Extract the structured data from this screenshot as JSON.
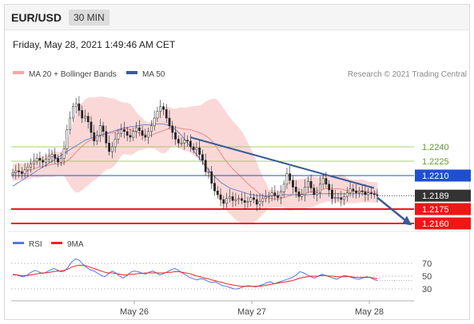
{
  "header": {
    "symbol": "EUR/USD",
    "timeframe": "30 MIN"
  },
  "timestamp": "Friday, May 28, 2021 1:49:46 AM CET",
  "legend": {
    "bands_label": "MA 20 + Bollinger Bands",
    "ma50_label": "MA 50",
    "credit": "Research © 2021 Trading Central"
  },
  "rsi_legend": {
    "rsi_label": "RSI",
    "ma_label": "9MA"
  },
  "colors": {
    "bands": "#f7a8a8",
    "ma20": "#e88080",
    "ma50": "#6f86c9",
    "trend": "#3a5a98",
    "resistance": "#8dbf4a",
    "pivot": "#1f4fd1",
    "support": "#ef1616",
    "candle": "#222222",
    "current": "#333333",
    "rsi": "#5577dd",
    "rsi_ma": "#ee2222"
  },
  "chart_data": [
    {
      "type": "candlestick",
      "title": "",
      "x_labels": [
        "May 26",
        "May 27",
        "May 28"
      ],
      "ylim": [
        1.2155,
        1.2305
      ],
      "series": [
        {
          "name": "MA 20 + Bollinger Bands"
        },
        {
          "name": "MA 50"
        }
      ],
      "close": [
        1.2213,
        1.2215,
        1.2214,
        1.2212,
        1.2216,
        1.2219,
        1.2222,
        1.2225,
        1.2228,
        1.2226,
        1.2224,
        1.2227,
        1.223,
        1.2232,
        1.2228,
        1.2224,
        1.2228,
        1.2238,
        1.2258,
        1.227,
        1.2282,
        1.2285,
        1.2278,
        1.227,
        1.2272,
        1.2266,
        1.2255,
        1.2246,
        1.2252,
        1.2262,
        1.2256,
        1.2244,
        1.2235,
        1.224,
        1.2248,
        1.2254,
        1.2258,
        1.2256,
        1.2252,
        1.225,
        1.2256,
        1.226,
        1.2257,
        1.2252,
        1.225,
        1.2256,
        1.2262,
        1.227,
        1.2277,
        1.2282,
        1.2279,
        1.227,
        1.2262,
        1.2255,
        1.2248,
        1.2244,
        1.2244,
        1.2247,
        1.2246,
        1.224,
        1.2237,
        1.2239,
        1.2232,
        1.2226,
        1.2214,
        1.2214,
        1.2202,
        1.2194,
        1.219,
        1.2185,
        1.2181,
        1.2186,
        1.2188,
        1.2184,
        1.2185,
        1.2186,
        1.2184,
        1.2182,
        1.2183,
        1.2187,
        1.2185,
        1.218,
        1.2183,
        1.2186,
        1.2188,
        1.2189,
        1.2192,
        1.2189,
        1.2187,
        1.2193,
        1.2201,
        1.2212,
        1.2205,
        1.2198,
        1.2193,
        1.2188,
        1.219,
        1.2198,
        1.2204,
        1.2197,
        1.219,
        1.2192,
        1.2201,
        1.2207,
        1.2201,
        1.2195,
        1.2186,
        1.2187,
        1.2187,
        1.2185,
        1.2188,
        1.2192,
        1.2196,
        1.2194,
        1.2192,
        1.2194,
        1.2193,
        1.219,
        1.2192,
        1.2191,
        1.219,
        1.2189
      ],
      "ma50": [
        1.2199,
        1.2201,
        1.2203,
        1.2205,
        1.2207,
        1.2209,
        1.2211,
        1.2213,
        1.2215,
        1.2217,
        1.2219,
        1.2221,
        1.2223,
        1.2225,
        1.2227,
        1.2229,
        1.2231,
        1.2233,
        1.2235,
        1.2237,
        1.2239,
        1.2241,
        1.2243,
        1.2245,
        1.2247,
        1.2248,
        1.2249,
        1.225,
        1.2251,
        1.2252,
        1.2253,
        1.2254,
        1.2255,
        1.2256,
        1.2257,
        1.2258,
        1.2259,
        1.226,
        1.226,
        1.2261,
        1.2261,
        1.2262,
        1.2262,
        1.2263,
        1.2263,
        1.2263,
        1.2263,
        1.2264,
        1.2264,
        1.2264,
        1.2264,
        1.2263,
        1.2262,
        1.226,
        1.2258,
        1.2255,
        1.2252,
        1.2248,
        1.2244,
        1.224,
        1.2236,
        1.2232,
        1.2228,
        1.2224,
        1.222,
        1.2216,
        1.2212,
        1.2209,
        1.2206,
        1.2203,
        1.2201,
        1.2199,
        1.2197,
        1.2196,
        1.2195,
        1.2194,
        1.2193,
        1.2192,
        1.2191,
        1.219,
        1.219,
        1.2189,
        1.2189,
        1.2189,
        1.2189,
        1.2189,
        1.2189,
        1.2189,
        1.2189,
        1.219,
        1.219,
        1.219,
        1.219,
        1.219,
        1.219,
        1.219,
        1.219,
        1.219,
        1.219,
        1.219,
        1.2191,
        1.2191,
        1.2191,
        1.2191,
        1.2191,
        1.2191,
        1.2191,
        1.2191,
        1.2191,
        1.2191,
        1.2191,
        1.2191,
        1.2191,
        1.2191,
        1.2191,
        1.2191,
        1.2191,
        1.2191,
        1.2191,
        1.2191,
        1.2191,
        1.2191
      ],
      "trendline": [
        [
          1.225,
          1.2197
        ]
      ],
      "levels": [
        {
          "value": 1.224,
          "label": "1.2240",
          "kind": "resistance"
        },
        {
          "value": 1.2225,
          "label": "1.2225",
          "kind": "resistance"
        },
        {
          "value": 1.221,
          "label": "1.2210",
          "kind": "pivot"
        },
        {
          "value": 1.2189,
          "label": "1.2189",
          "kind": "current"
        },
        {
          "value": 1.2175,
          "label": "1.2175",
          "kind": "support"
        },
        {
          "value": 1.216,
          "label": "1.2160",
          "kind": "support"
        }
      ]
    },
    {
      "type": "line",
      "title": "",
      "ylim": [
        20,
        85
      ],
      "y_ticks": [
        70,
        50,
        30
      ],
      "series": [
        {
          "name": "RSI",
          "values": [
            53,
            52,
            50,
            49,
            52,
            56,
            59,
            57,
            54,
            56,
            59,
            62,
            60,
            57,
            58,
            64,
            72,
            77,
            75,
            69,
            64,
            60,
            58,
            55,
            51,
            49,
            54,
            58,
            55,
            50,
            47,
            51,
            56,
            58,
            57,
            55,
            53,
            56,
            58,
            55,
            52,
            54,
            57,
            60,
            62,
            59,
            55,
            52,
            48,
            46,
            44,
            46,
            45,
            42,
            40,
            41,
            38,
            35,
            34,
            32,
            30,
            30,
            32,
            34,
            35,
            34,
            33,
            35,
            37,
            40,
            41,
            38,
            40,
            42,
            44,
            46,
            48,
            52,
            57,
            55,
            52,
            49,
            47,
            50,
            53,
            51,
            49,
            47,
            45,
            48,
            51,
            50,
            48,
            46,
            45,
            47,
            49,
            48,
            45,
            43
          ]
        },
        {
          "name": "9MA",
          "values": [
            52,
            52,
            51,
            51,
            51,
            52,
            53,
            54,
            55,
            55,
            56,
            57,
            58,
            58,
            59,
            61,
            64,
            66,
            67,
            67,
            66,
            64,
            62,
            60,
            58,
            56,
            55,
            55,
            54,
            53,
            52,
            52,
            53,
            53,
            54,
            54,
            55,
            55,
            55,
            55,
            55,
            55,
            56,
            56,
            57,
            57,
            56,
            55,
            54,
            52,
            50,
            49,
            47,
            46,
            44,
            43,
            41,
            40,
            38,
            37,
            36,
            35,
            34,
            34,
            34,
            34,
            34,
            34,
            35,
            36,
            37,
            38,
            39,
            40,
            41,
            42,
            43,
            45,
            47,
            48,
            49,
            50,
            50,
            50,
            51,
            51,
            50,
            50,
            49,
            49,
            49,
            49,
            49,
            48,
            48,
            48,
            48,
            48,
            47,
            46
          ]
        }
      ]
    }
  ]
}
